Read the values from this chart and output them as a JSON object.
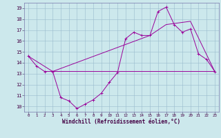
{
  "xlabel": "Windchill (Refroidissement éolien,°C)",
  "bg_color": "#cce8ec",
  "line_color": "#990099",
  "grid_color": "#99bbcc",
  "xlim": [
    -0.5,
    23.5
  ],
  "ylim": [
    9.5,
    19.5
  ],
  "xticks": [
    0,
    1,
    2,
    3,
    4,
    5,
    6,
    7,
    8,
    9,
    10,
    11,
    12,
    13,
    14,
    15,
    16,
    17,
    18,
    19,
    20,
    21,
    22,
    23
  ],
  "yticks": [
    10,
    11,
    12,
    13,
    14,
    15,
    16,
    17,
    18,
    19
  ],
  "line1_x": [
    0,
    1,
    2,
    3,
    4,
    5,
    6,
    7,
    8,
    9,
    10,
    11,
    12,
    13,
    14,
    15,
    16,
    17,
    18,
    19,
    20,
    21,
    22,
    23
  ],
  "line1_y": [
    14.6,
    13.7,
    13.2,
    13.2,
    10.8,
    10.5,
    9.8,
    10.2,
    10.6,
    11.2,
    12.2,
    13.1,
    16.2,
    16.8,
    16.5,
    16.5,
    18.7,
    19.1,
    17.5,
    16.8,
    17.1,
    14.8,
    14.3,
    13.2
  ],
  "line2_x": [
    0,
    3,
    23
  ],
  "line2_y": [
    14.6,
    13.2,
    13.2
  ],
  "line3_x": [
    3,
    15,
    17,
    20,
    23
  ],
  "line3_y": [
    13.2,
    16.5,
    17.5,
    17.8,
    13.2
  ],
  "marker_size": 3,
  "lw": 0.7
}
